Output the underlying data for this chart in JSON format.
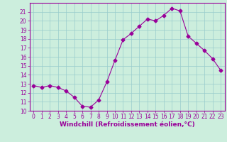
{
  "x": [
    0,
    1,
    2,
    3,
    4,
    5,
    6,
    7,
    8,
    9,
    10,
    11,
    12,
    13,
    14,
    15,
    16,
    17,
    18,
    19,
    20,
    21,
    22,
    23
  ],
  "y": [
    12.8,
    12.6,
    12.8,
    12.6,
    12.2,
    11.5,
    10.5,
    10.4,
    11.2,
    13.2,
    15.6,
    17.9,
    18.6,
    19.4,
    20.2,
    20.0,
    20.6,
    21.4,
    21.1,
    18.3,
    17.5,
    16.7,
    15.8,
    14.5
  ],
  "line_color": "#990099",
  "marker": "D",
  "marker_size": 2.5,
  "bg_color": "#cceedd",
  "grid_color": "#99cccc",
  "xlabel": "Windchill (Refroidissement éolien,°C)",
  "ylim": [
    10,
    22
  ],
  "xlim": [
    -0.5,
    23.5
  ],
  "yticks": [
    10,
    11,
    12,
    13,
    14,
    15,
    16,
    17,
    18,
    19,
    20,
    21
  ],
  "xticks": [
    0,
    1,
    2,
    3,
    4,
    5,
    6,
    7,
    8,
    9,
    10,
    11,
    12,
    13,
    14,
    15,
    16,
    17,
    18,
    19,
    20,
    21,
    22,
    23
  ],
  "tick_color": "#990099",
  "label_color": "#990099",
  "axis_color": "#990099",
  "xlabel_fontsize": 6.5,
  "tick_fontsize": 5.5
}
